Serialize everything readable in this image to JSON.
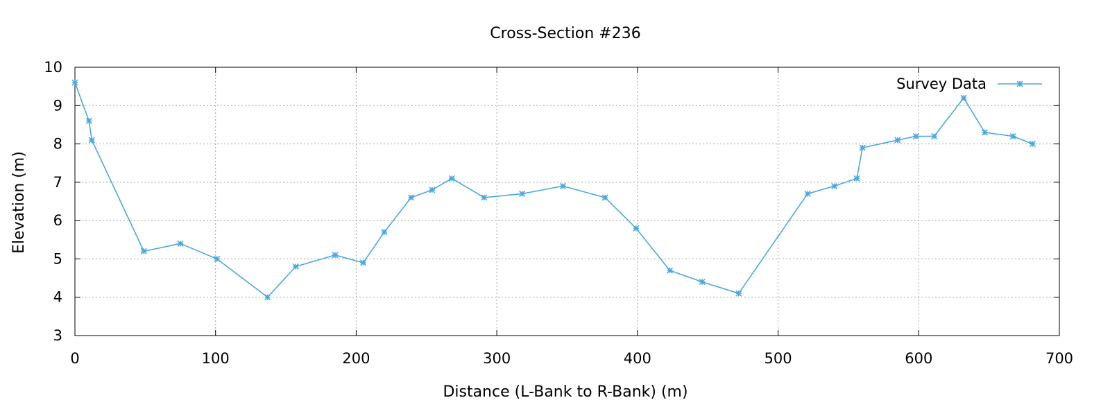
{
  "chart_data": {
    "type": "line",
    "title": "Cross-Section #236",
    "xlabel": "Distance (L-Bank to R-Bank) (m)",
    "ylabel": "Elevation (m)",
    "xlim": [
      0,
      700
    ],
    "ylim": [
      3,
      10
    ],
    "xticks": [
      0,
      100,
      200,
      300,
      400,
      500,
      600,
      700
    ],
    "yticks": [
      3,
      4,
      5,
      6,
      7,
      8,
      9,
      10
    ],
    "grid": true,
    "legend_position": "top-right",
    "colors": {
      "series": "#4aa8df",
      "grid": "#a0a0a0",
      "axis": "#000000"
    },
    "series": [
      {
        "name": "Survey Data",
        "marker": "star",
        "x": [
          0,
          10,
          12,
          49,
          75,
          101,
          137,
          157,
          185,
          205,
          220,
          239,
          254,
          268,
          291,
          318,
          347,
          377,
          399,
          423,
          446,
          472,
          521,
          540,
          556,
          560,
          585,
          598,
          611,
          632,
          647,
          667,
          681
        ],
        "y": [
          9.6,
          8.6,
          8.1,
          5.2,
          5.4,
          5.0,
          4.0,
          4.8,
          5.1,
          4.9,
          5.7,
          6.6,
          6.8,
          7.1,
          6.6,
          6.7,
          6.9,
          6.6,
          5.8,
          4.7,
          4.4,
          4.1,
          6.7,
          6.9,
          7.1,
          7.9,
          8.1,
          8.2,
          8.2,
          9.2,
          8.3,
          8.2,
          8.0
        ]
      }
    ]
  }
}
